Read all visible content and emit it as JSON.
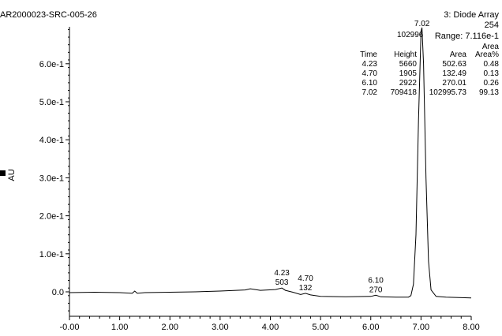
{
  "sample_id": "AR2000023-SRC-005-26",
  "detector": "3: Diode Array",
  "wavelength": "254",
  "range": "Range: 7.116e-1",
  "y_axis_label": "AU",
  "table": {
    "area_header_top": "Area",
    "headers": [
      "Time",
      "Height",
      "Area",
      "Area%"
    ],
    "rows": [
      [
        "4.23",
        "5660",
        "502.63",
        "0.48"
      ],
      [
        "4.70",
        "1905",
        "132.49",
        "0.13"
      ],
      [
        "6.10",
        "2922",
        "270.01",
        "0.26"
      ],
      [
        "7.02",
        "709418",
        "102995.73",
        "99.13"
      ]
    ]
  },
  "chart_data": {
    "type": "line",
    "xlim": [
      0,
      8
    ],
    "ylim": [
      -0.05,
      0.7
    ],
    "x_ticks": [
      "-0.00",
      "1.00",
      "2.00",
      "3.00",
      "4.00",
      "5.00",
      "6.00",
      "7.00",
      "8.00"
    ],
    "y_ticks": [
      {
        "value": 0.0,
        "label": "0.0"
      },
      {
        "value": 0.1,
        "label": "1.0e-1"
      },
      {
        "value": 0.2,
        "label": "2.0e-1"
      },
      {
        "value": 0.3,
        "label": "3.0e-1"
      },
      {
        "value": 0.4,
        "label": "4.0e-1"
      },
      {
        "value": 0.5,
        "label": "5.0e-1"
      },
      {
        "value": 0.6,
        "label": "6.0e-1"
      }
    ],
    "baseline": [
      [
        0.0,
        -0.002
      ],
      [
        0.5,
        -0.001
      ],
      [
        1.0,
        -0.002
      ],
      [
        1.25,
        -0.004
      ],
      [
        1.3,
        0.002
      ],
      [
        1.35,
        -0.004
      ],
      [
        1.5,
        -0.002
      ],
      [
        2.0,
        -0.001
      ],
      [
        2.5,
        0.0
      ],
      [
        3.0,
        0.002
      ],
      [
        3.5,
        0.005
      ],
      [
        3.6,
        0.008
      ],
      [
        3.8,
        0.004
      ],
      [
        4.1,
        0.006
      ],
      [
        4.23,
        0.01
      ],
      [
        4.3,
        0.004
      ],
      [
        4.45,
        -0.001
      ],
      [
        4.6,
        -0.007
      ],
      [
        4.7,
        -0.004
      ],
      [
        4.8,
        -0.008
      ],
      [
        5.0,
        -0.012
      ],
      [
        5.5,
        -0.013
      ],
      [
        6.0,
        -0.012
      ],
      [
        6.1,
        -0.009
      ],
      [
        6.2,
        -0.013
      ],
      [
        6.5,
        -0.014
      ],
      [
        6.75,
        -0.014
      ],
      [
        6.8,
        -0.01
      ],
      [
        6.85,
        0.02
      ],
      [
        6.9,
        0.15
      ],
      [
        6.95,
        0.45
      ],
      [
        7.0,
        0.685
      ],
      [
        7.02,
        0.695
      ],
      [
        7.05,
        0.6
      ],
      [
        7.1,
        0.3
      ],
      [
        7.15,
        0.08
      ],
      [
        7.2,
        0.005
      ],
      [
        7.3,
        -0.012
      ],
      [
        7.5,
        -0.014
      ],
      [
        8.0,
        -0.016
      ]
    ],
    "peaks": [
      {
        "time": "4.23",
        "area": "503",
        "x": 4.23,
        "y": 0.01
      },
      {
        "time": "4.70",
        "area": "132",
        "x": 4.7,
        "y": -0.004
      },
      {
        "time": "6.10",
        "area": "270",
        "x": 6.1,
        "y": -0.009
      },
      {
        "time": "7.02",
        "area": "102996",
        "x": 7.02,
        "y": 0.695
      }
    ]
  }
}
